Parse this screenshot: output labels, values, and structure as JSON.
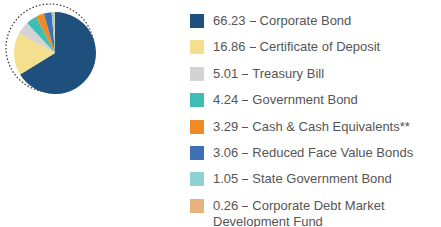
{
  "chart_data": {
    "type": "pie",
    "categories": [
      "Corporate Bond",
      "Certificate of Deposit",
      "Treasury Bill",
      "Government Bond",
      "Cash & Cash Equivalents**",
      "Reduced Face Value Bonds",
      "State Government Bond",
      "Corporate Debt Market Development Fund"
    ],
    "values": [
      66.23,
      16.86,
      5.01,
      4.24,
      3.29,
      3.06,
      1.05,
      0.26
    ],
    "colors": [
      "#1f4f7d",
      "#f4df8e",
      "#d3d3d3",
      "#3dbdb4",
      "#ef8b25",
      "#3f70b4",
      "#8ed2d2",
      "#e8b27c"
    ],
    "legend": "right"
  }
}
